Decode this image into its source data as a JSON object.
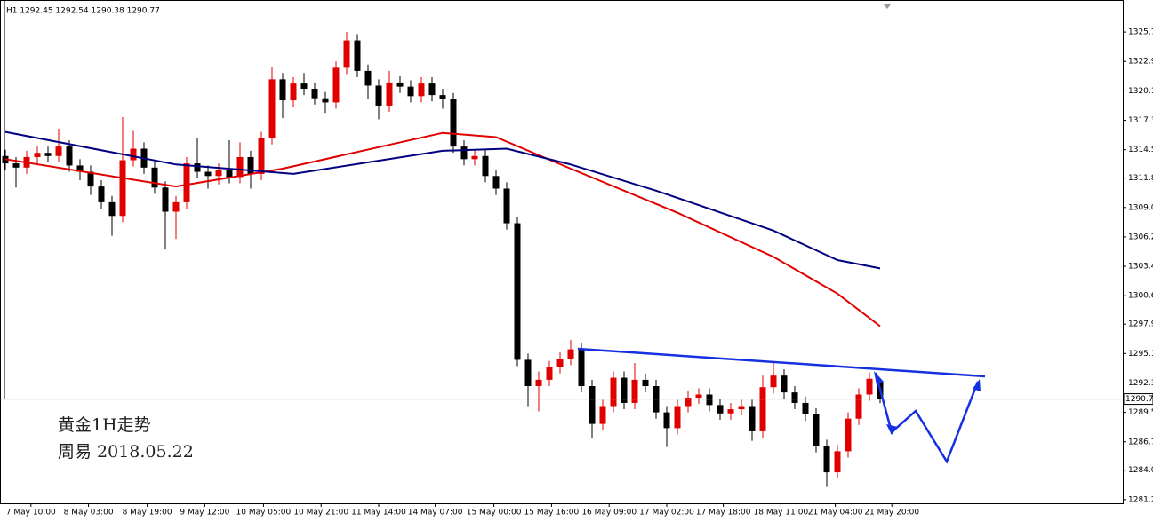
{
  "chart_data": {
    "type": "candlestick",
    "header": "H1 1292.45 1292.54 1290.38 1290.77",
    "annotations": [
      "黄金1H走势",
      "周易 2018.05.22"
    ],
    "up_color": "#e00000",
    "down_color": "#000000",
    "xlim": [
      -0.5,
      104.75
    ],
    "ylim": [
      1280.85,
      1328.75
    ],
    "yticks": [
      1325.7,
      1322.9,
      1320.1,
      1317.3,
      1314.5,
      1311.8,
      {
        "value": 1309,
        "label": "1309.0"
      },
      1306.2,
      1303.4,
      1300.6,
      1297.9,
      1295.1,
      1292.3,
      1289.5,
      1286.7,
      {
        "value": 1284,
        "label": "1284.0"
      },
      1281.2
    ],
    "xticks": [
      {
        "value": 2.4,
        "label": "7 May 10:00"
      },
      {
        "value": 7.8,
        "label": "8 May 03:00"
      },
      {
        "value": 13.3,
        "label": "8 May 19:00"
      },
      {
        "value": 18.7,
        "label": "9 May 12:00"
      },
      {
        "value": 24.2,
        "label": "10 May 05:00"
      },
      {
        "value": 29.6,
        "label": "10 May 21:00"
      },
      {
        "value": 35,
        "label": "11 May 14:00"
      },
      {
        "value": 40.3,
        "label": "14 May 07:00"
      },
      {
        "value": 45.8,
        "label": "15 May 00:00"
      },
      {
        "value": 51.2,
        "label": "15 May 16:00"
      },
      {
        "value": 56.6,
        "label": "16 May 09:00"
      },
      {
        "value": 62,
        "label": "17 May 02:00"
      },
      {
        "value": 67.3,
        "label": "17 May 18:00"
      },
      {
        "value": 72.7,
        "label": "18 May 11:00"
      },
      {
        "value": 77.8,
        "label": "21 May 04:00"
      },
      {
        "value": 83.1,
        "label": "21 May 20:00"
      }
    ],
    "last_price": 1290.77,
    "open": [
      1313.9,
      1313.2,
      1312.8,
      1313.8,
      1314.2,
      1313.9,
      1314.8,
      1313.0,
      1312.4,
      1311.0,
      1309.5,
      1308.2,
      1313.5,
      1314.6,
      1312.8,
      1310.9,
      1308.6,
      1309.5,
      1313.2,
      1312.4,
      1312.0,
      1312.6,
      1311.9,
      1313.8,
      1312.2,
      1315.6,
      1321.2,
      1319.2,
      1320.8,
      1320.3,
      1319.4,
      1319.0,
      1322.3,
      1324.9,
      1322.0,
      1320.6,
      1318.7,
      1320.9,
      1320.5,
      1319.6,
      1320.8,
      1319.7,
      1319.3,
      1314.8,
      1313.6,
      1313.9,
      1312.0,
      1310.8,
      1307.5,
      1294.5,
      1292.0,
      1292.6,
      1293.8,
      1294.6,
      1295.5,
      1292.0,
      1288.4,
      1290.1,
      1292.8,
      1290.4,
      1292.6,
      1292.0,
      1289.5,
      1288.0,
      1290.1,
      1290.9,
      1291.2,
      1290.2,
      1289.4,
      1289.8,
      1290.1,
      1287.7,
      1291.9,
      1293.0,
      1291.4,
      1290.4,
      1289.3,
      1286.3,
      1283.8,
      1285.8,
      1288.9,
      1291.2,
      1292.45
    ],
    "high": [
      1314.5,
      1313.8,
      1314.4,
      1314.8,
      1314.8,
      1316.5,
      1315.4,
      1313.6,
      1313.0,
      1311.6,
      1310.1,
      1317.6,
      1316.3,
      1315.2,
      1313.4,
      1311.5,
      1310.1,
      1313.8,
      1315.6,
      1313.0,
      1313.2,
      1315.4,
      1315.2,
      1314.4,
      1316.2,
      1322.4,
      1321.8,
      1321.4,
      1321.8,
      1320.9,
      1320.0,
      1322.9,
      1325.7,
      1325.5,
      1322.6,
      1321.2,
      1322.0,
      1321.5,
      1321.1,
      1321.4,
      1321.4,
      1320.3,
      1319.9,
      1315.4,
      1314.5,
      1314.5,
      1312.6,
      1311.4,
      1308.1,
      1295.1,
      1293.4,
      1294.4,
      1295.2,
      1296.4,
      1296.1,
      1292.6,
      1290.7,
      1293.4,
      1293.4,
      1294.2,
      1293.2,
      1292.6,
      1290.1,
      1290.7,
      1291.5,
      1291.8,
      1291.8,
      1290.8,
      1290.4,
      1290.7,
      1290.7,
      1293.0,
      1294.2,
      1293.6,
      1292.0,
      1291.0,
      1289.9,
      1286.9,
      1286.4,
      1289.5,
      1291.8,
      1293.3,
      1292.54
    ],
    "low": [
      1312.6,
      1310.9,
      1312.2,
      1313.2,
      1313.3,
      1313.3,
      1312.4,
      1311.6,
      1310.2,
      1308.9,
      1306.3,
      1307.6,
      1312.9,
      1312.2,
      1310.3,
      1305.0,
      1306.0,
      1308.9,
      1311.8,
      1310.8,
      1311.2,
      1311.3,
      1311.3,
      1310.8,
      1311.6,
      1315.0,
      1317.5,
      1318.6,
      1319.7,
      1318.8,
      1318.0,
      1318.4,
      1321.7,
      1321.4,
      1319.3,
      1317.4,
      1318.1,
      1319.9,
      1319.0,
      1319.0,
      1319.1,
      1318.4,
      1314.2,
      1313.0,
      1313.0,
      1311.4,
      1310.2,
      1306.9,
      1293.9,
      1290.1,
      1289.6,
      1292.0,
      1293.2,
      1294.0,
      1291.4,
      1287.0,
      1287.8,
      1289.5,
      1289.8,
      1289.8,
      1291.4,
      1288.9,
      1286.2,
      1287.4,
      1289.5,
      1290.3,
      1289.6,
      1288.8,
      1288.8,
      1289.2,
      1286.8,
      1287.1,
      1291.3,
      1290.8,
      1289.8,
      1288.7,
      1285.7,
      1282.4,
      1283.2,
      1285.2,
      1288.3,
      1290.6,
      1290.38
    ],
    "close": [
      1313.2,
      1312.8,
      1313.8,
      1314.2,
      1313.9,
      1314.8,
      1313.0,
      1312.4,
      1311.0,
      1309.5,
      1308.2,
      1313.5,
      1314.6,
      1312.8,
      1310.9,
      1308.6,
      1309.5,
      1313.2,
      1312.4,
      1312.0,
      1312.6,
      1311.9,
      1313.8,
      1312.2,
      1315.6,
      1321.2,
      1319.2,
      1320.8,
      1320.3,
      1319.4,
      1319.0,
      1322.3,
      1324.9,
      1322.0,
      1320.6,
      1318.7,
      1320.9,
      1320.5,
      1319.6,
      1320.8,
      1319.7,
      1319.3,
      1314.8,
      1313.6,
      1313.9,
      1312.0,
      1310.8,
      1307.5,
      1294.5,
      1292.0,
      1292.6,
      1293.8,
      1294.6,
      1295.5,
      1292.0,
      1288.4,
      1290.1,
      1292.8,
      1290.4,
      1292.6,
      1292.0,
      1289.5,
      1288.0,
      1290.1,
      1290.9,
      1291.2,
      1290.2,
      1289.4,
      1289.8,
      1290.1,
      1287.7,
      1291.9,
      1293.0,
      1291.4,
      1290.4,
      1289.3,
      1286.3,
      1283.8,
      1285.8,
      1288.9,
      1291.2,
      1292.7,
      1290.77
    ],
    "lines": [
      {
        "color": "#e00000",
        "x": [
          0,
          16,
          26,
          41,
          46,
          53,
          63,
          72,
          78,
          82
        ],
        "values": [
          1313.6,
          1311.0,
          1312.7,
          1316.1,
          1315.7,
          1312.7,
          1308.5,
          1304.3,
          1300.8,
          1297.7
        ]
      },
      {
        "color": "#000080",
        "x": [
          0,
          16,
          27,
          41,
          47,
          53,
          61,
          72,
          78,
          82
        ],
        "values": [
          1316.2,
          1313.1,
          1312.2,
          1314.4,
          1314.6,
          1313.1,
          1310.6,
          1306.8,
          1304.0,
          1303.2
        ]
      }
    ]
  }
}
